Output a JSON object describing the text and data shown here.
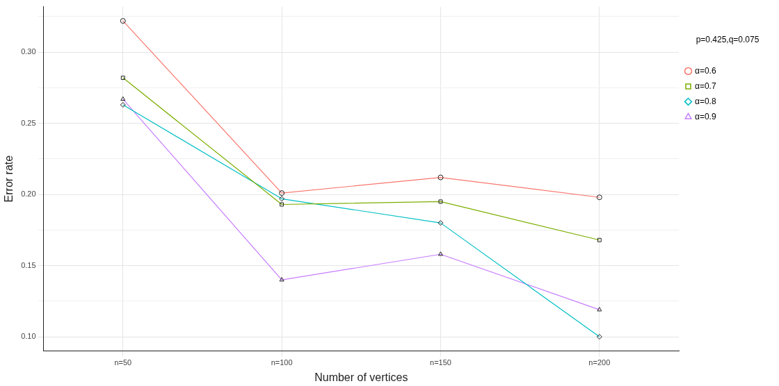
{
  "chart_data": {
    "type": "line",
    "xlabel": "Number of vertices",
    "ylabel": "Error rate",
    "legend_title": "p=0.425,q=0.075",
    "categories": [
      "n=50",
      "n=100",
      "n=150",
      "n=200"
    ],
    "series": [
      {
        "name": "α=0.6",
        "color": "#f8766d",
        "marker": "circle",
        "values": [
          0.322,
          0.201,
          0.212,
          0.198
        ]
      },
      {
        "name": "α=0.7",
        "color": "#7cae00",
        "marker": "square",
        "values": [
          0.282,
          0.193,
          0.195,
          0.168
        ]
      },
      {
        "name": "α=0.8",
        "color": "#00bfc4",
        "marker": "diamond",
        "values": [
          0.263,
          0.197,
          0.18,
          0.1
        ]
      },
      {
        "name": "α=0.9",
        "color": "#c77cff",
        "marker": "triangle",
        "values": [
          0.267,
          0.14,
          0.158,
          0.119
        ]
      }
    ],
    "ylim": [
      0.09,
      0.332
    ],
    "yticks": [
      {
        "value": 0.1,
        "label": "0.10"
      },
      {
        "value": 0.125,
        "label": null
      },
      {
        "value": 0.15,
        "label": "0.15"
      },
      {
        "value": 0.175,
        "label": null
      },
      {
        "value": 0.2,
        "label": "0.20"
      },
      {
        "value": 0.225,
        "label": null
      },
      {
        "value": 0.25,
        "label": "0.25"
      },
      {
        "value": 0.275,
        "label": null
      },
      {
        "value": 0.3,
        "label": "0.30"
      },
      {
        "value": 0.325,
        "label": null
      }
    ],
    "grid": true,
    "legend": "right",
    "line_style": "solid"
  }
}
